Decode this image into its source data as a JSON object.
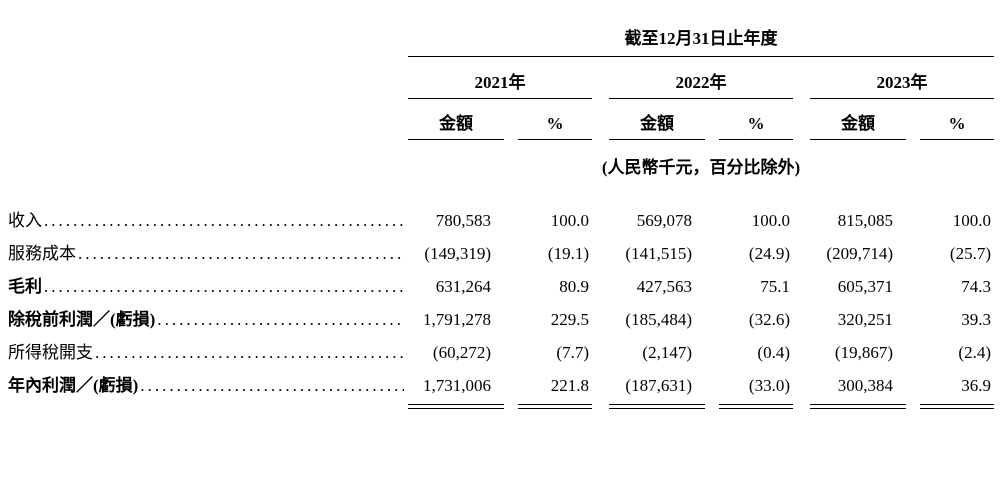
{
  "table": {
    "period_header": "截至12月31日止年度",
    "year_groups": [
      {
        "year": "2021年"
      },
      {
        "year": "2022年"
      },
      {
        "year": "2023年"
      }
    ],
    "amount_label": "金額",
    "percent_label": "%",
    "unit_note": "(人民幣千元，百分比除外)",
    "rows": [
      {
        "label": "收入",
        "values": [
          "780,583",
          "100.0",
          "569,078",
          "100.0",
          "815,085",
          "100.0"
        ]
      },
      {
        "label": "服務成本",
        "values": [
          "(149,319)",
          "(19.1)",
          "(141,515)",
          "(24.9)",
          "(209,714)",
          "(25.7)"
        ]
      },
      {
        "label": "毛利",
        "values": [
          "631,264",
          "80.9",
          "427,563",
          "75.1",
          "605,371",
          "74.3"
        ]
      },
      {
        "label": "除稅前利潤／(虧損)",
        "values": [
          "1,791,278",
          "229.5",
          "(185,484)",
          "(32.6)",
          "320,251",
          "39.3"
        ]
      },
      {
        "label": "所得稅開支",
        "values": [
          "(60,272)",
          "(7.7)",
          "(2,147)",
          "(0.4)",
          "(19,867)",
          "(2.4)"
        ]
      },
      {
        "label": "年內利潤／(虧損)",
        "values": [
          "1,731,006",
          "221.8",
          "(187,631)",
          "(33.0)",
          "300,384",
          "36.9"
        ]
      }
    ]
  }
}
